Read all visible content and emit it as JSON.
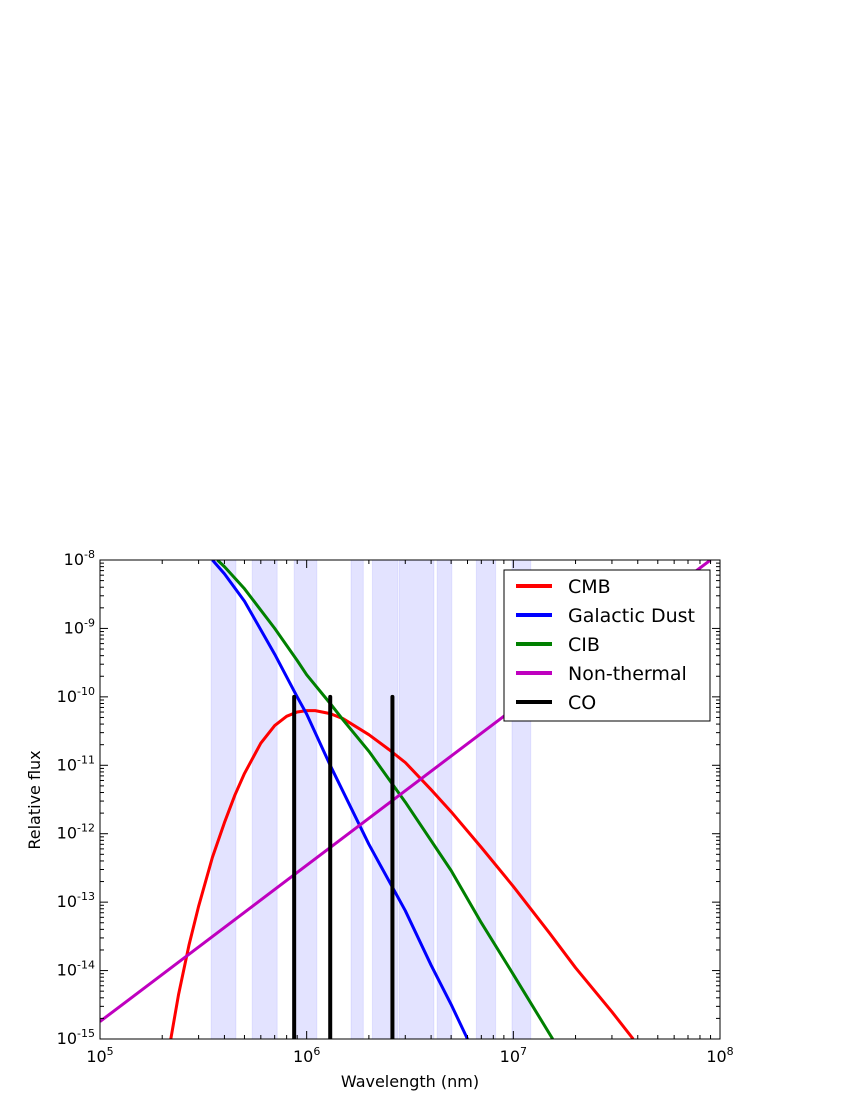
{
  "chart_data": {
    "type": "line",
    "title": "",
    "xlabel": "Wavelength (nm)",
    "ylabel": "Relative flux",
    "xscale": "log",
    "yscale": "log",
    "xlim": [
      100000,
      100000000
    ],
    "ylim": [
      1e-15,
      1e-08
    ],
    "xticks": [
      {
        "value": 100000,
        "base": "10",
        "exp": "5"
      },
      {
        "value": 1000000,
        "base": "10",
        "exp": "6"
      },
      {
        "value": 10000000,
        "base": "10",
        "exp": "7"
      },
      {
        "value": 100000000,
        "base": "10",
        "exp": "8"
      }
    ],
    "yticks": [
      {
        "value": 1e-15,
        "base": "10",
        "exp": "-15"
      },
      {
        "value": 1e-14,
        "base": "10",
        "exp": "-14"
      },
      {
        "value": 1e-13,
        "base": "10",
        "exp": "-13"
      },
      {
        "value": 1e-12,
        "base": "10",
        "exp": "-12"
      },
      {
        "value": 1e-11,
        "base": "10",
        "exp": "-11"
      },
      {
        "value": 1e-10,
        "base": "10",
        "exp": "-10"
      },
      {
        "value": 1e-09,
        "base": "10",
        "exp": "-9"
      },
      {
        "value": 1e-08,
        "base": "10",
        "exp": "-8"
      }
    ],
    "grid": false,
    "legend_position": "top-right",
    "bands_color": "#0000ff",
    "bands": [
      [
        345000,
        455000
      ],
      [
        545000,
        720000
      ],
      [
        870000,
        1120000
      ],
      [
        1640000,
        1880000
      ],
      [
        2080000,
        2760000
      ],
      [
        2800000,
        4130000
      ],
      [
        4280000,
        5040000
      ],
      [
        6620000,
        8210000
      ],
      [
        9850000,
        12140000
      ]
    ],
    "series": [
      {
        "name": "CMB",
        "color": "#ff0000",
        "width": 3,
        "x": [
          220000,
          240000,
          270000,
          300000,
          350000,
          400000,
          450000,
          500000,
          600000,
          700000,
          800000,
          900000,
          1000000,
          1100000,
          1300000,
          1500000,
          2000000,
          2500000,
          3000000,
          4000000,
          5000000,
          7000000,
          10000000,
          15000000,
          20000000,
          30000000,
          38000000
        ],
        "y": [
          1e-15,
          4.5e-15,
          2.4e-14,
          8.7e-14,
          4.5e-13,
          1.45e-12,
          3.7e-12,
          7.6e-12,
          2.1e-11,
          3.8e-11,
          5.2e-11,
          6e-11,
          6.3e-11,
          6.3e-11,
          5.7e-11,
          4.8e-11,
          2.8e-11,
          1.7e-11,
          1.1e-11,
          4.4e-12,
          2.1e-12,
          6.3e-13,
          1.7e-13,
          3.5e-14,
          1.1e-14,
          2.5e-15,
          1e-15
        ]
      },
      {
        "name": "Galactic Dust",
        "color": "#0000ff",
        "width": 3,
        "x": [
          350000,
          400000,
          500000,
          700000,
          900000,
          1000000,
          1300000,
          2000000,
          3000000,
          4000000,
          5000000,
          6000000
        ],
        "y": [
          1e-08,
          6.3e-09,
          2.5e-09,
          4.2e-10,
          1e-10,
          5.6e-11,
          1e-11,
          7e-13,
          7.5e-14,
          1.2e-14,
          3.2e-15,
          1e-15
        ]
      },
      {
        "name": "CIB",
        "color": "#008000",
        "width": 3,
        "x": [
          370000,
          400000,
          500000,
          700000,
          900000,
          1000000,
          1300000,
          1500000,
          2000000,
          3000000,
          5000000,
          7000000,
          10000000,
          15500000
        ],
        "y": [
          1e-08,
          8e-09,
          3.8e-09,
          1e-09,
          3.4e-10,
          2.1e-10,
          8e-11,
          4.6e-11,
          1.6e-11,
          2.9e-12,
          2.9e-13,
          5e-14,
          8.8e-15,
          1e-15
        ]
      },
      {
        "name": "Non-thermal",
        "color": "#bf00bf",
        "width": 3,
        "x": [
          100000,
          90000000
        ],
        "y": [
          1.8e-15,
          1e-08
        ]
      },
      {
        "name": "CO",
        "color": "#000000",
        "width": 4,
        "segments": [
          {
            "x": 870000,
            "y0": 1e-15,
            "y1": 1e-10
          },
          {
            "x": 1300000,
            "y0": 1e-15,
            "y1": 1e-10
          },
          {
            "x": 2600000,
            "y0": 1e-15,
            "y1": 1e-10
          }
        ]
      }
    ]
  }
}
